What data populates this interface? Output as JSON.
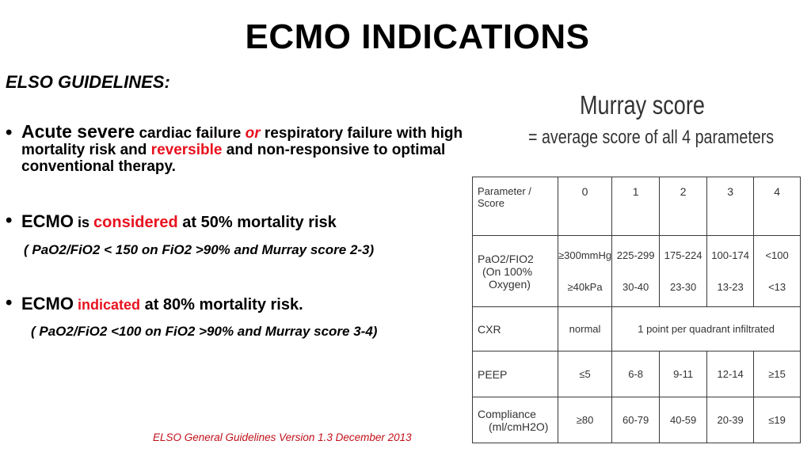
{
  "title": "ECMO INDICATIONS",
  "subtitle": "ELSO GUIDELINES:",
  "bullets": {
    "b1": {
      "part1": "Acute severe",
      "part2": " cardiac failure ",
      "part3": "or",
      "part4": " respiratory failure with high mortality risk and ",
      "part5": "reversible",
      "part6": " and non-responsive to optimal conventional therapy."
    },
    "b2": {
      "part1": "ECMO",
      "part2": " is ",
      "part3": "considered",
      "part4": " at 50% mortality risk",
      "sub": "( PaO2/FiO2 < 150 on FiO2 >90% and Murray score 2-3)"
    },
    "b3": {
      "part1": "ECMO",
      "part2": " indicated",
      "part3": " at 80% mortality risk.",
      "sub": "( PaO2/FiO2 <100 on FiO2 >90% and Murray score 3-4)"
    }
  },
  "footer": "ELSO General Guidelines Version 1.3 December 2013",
  "murray": {
    "title": "Murray score",
    "subtitle": "= average score of all 4 parameters",
    "headers": [
      "Parameter / Score",
      "0",
      "1",
      "2",
      "3",
      "4"
    ],
    "pao2": {
      "label1": "PaO2/FIO2",
      "label2": "(On 100%",
      "label3": "Oxygen)",
      "row_a": [
        "≥300mmHg",
        "225-299",
        "175-224",
        "100-174",
        "<100"
      ],
      "row_b": [
        "≥40kPa",
        "30-40",
        "23-30",
        "13-23",
        "<13"
      ]
    },
    "cxr": {
      "label": "CXR",
      "score0": "normal",
      "other": "1 point per quadrant infiltrated"
    },
    "peep": {
      "label": "PEEP",
      "values": [
        "≤5",
        "6-8",
        "9-11",
        "12-14",
        "≥15"
      ]
    },
    "compliance": {
      "label1": "Compliance",
      "label2": "(ml/cmH2O)",
      "values": [
        "≥80",
        "60-79",
        "40-59",
        "20-39",
        "≤19"
      ]
    }
  },
  "colors": {
    "accent_red": "#e8121f",
    "footer_red": "#c0101a"
  }
}
